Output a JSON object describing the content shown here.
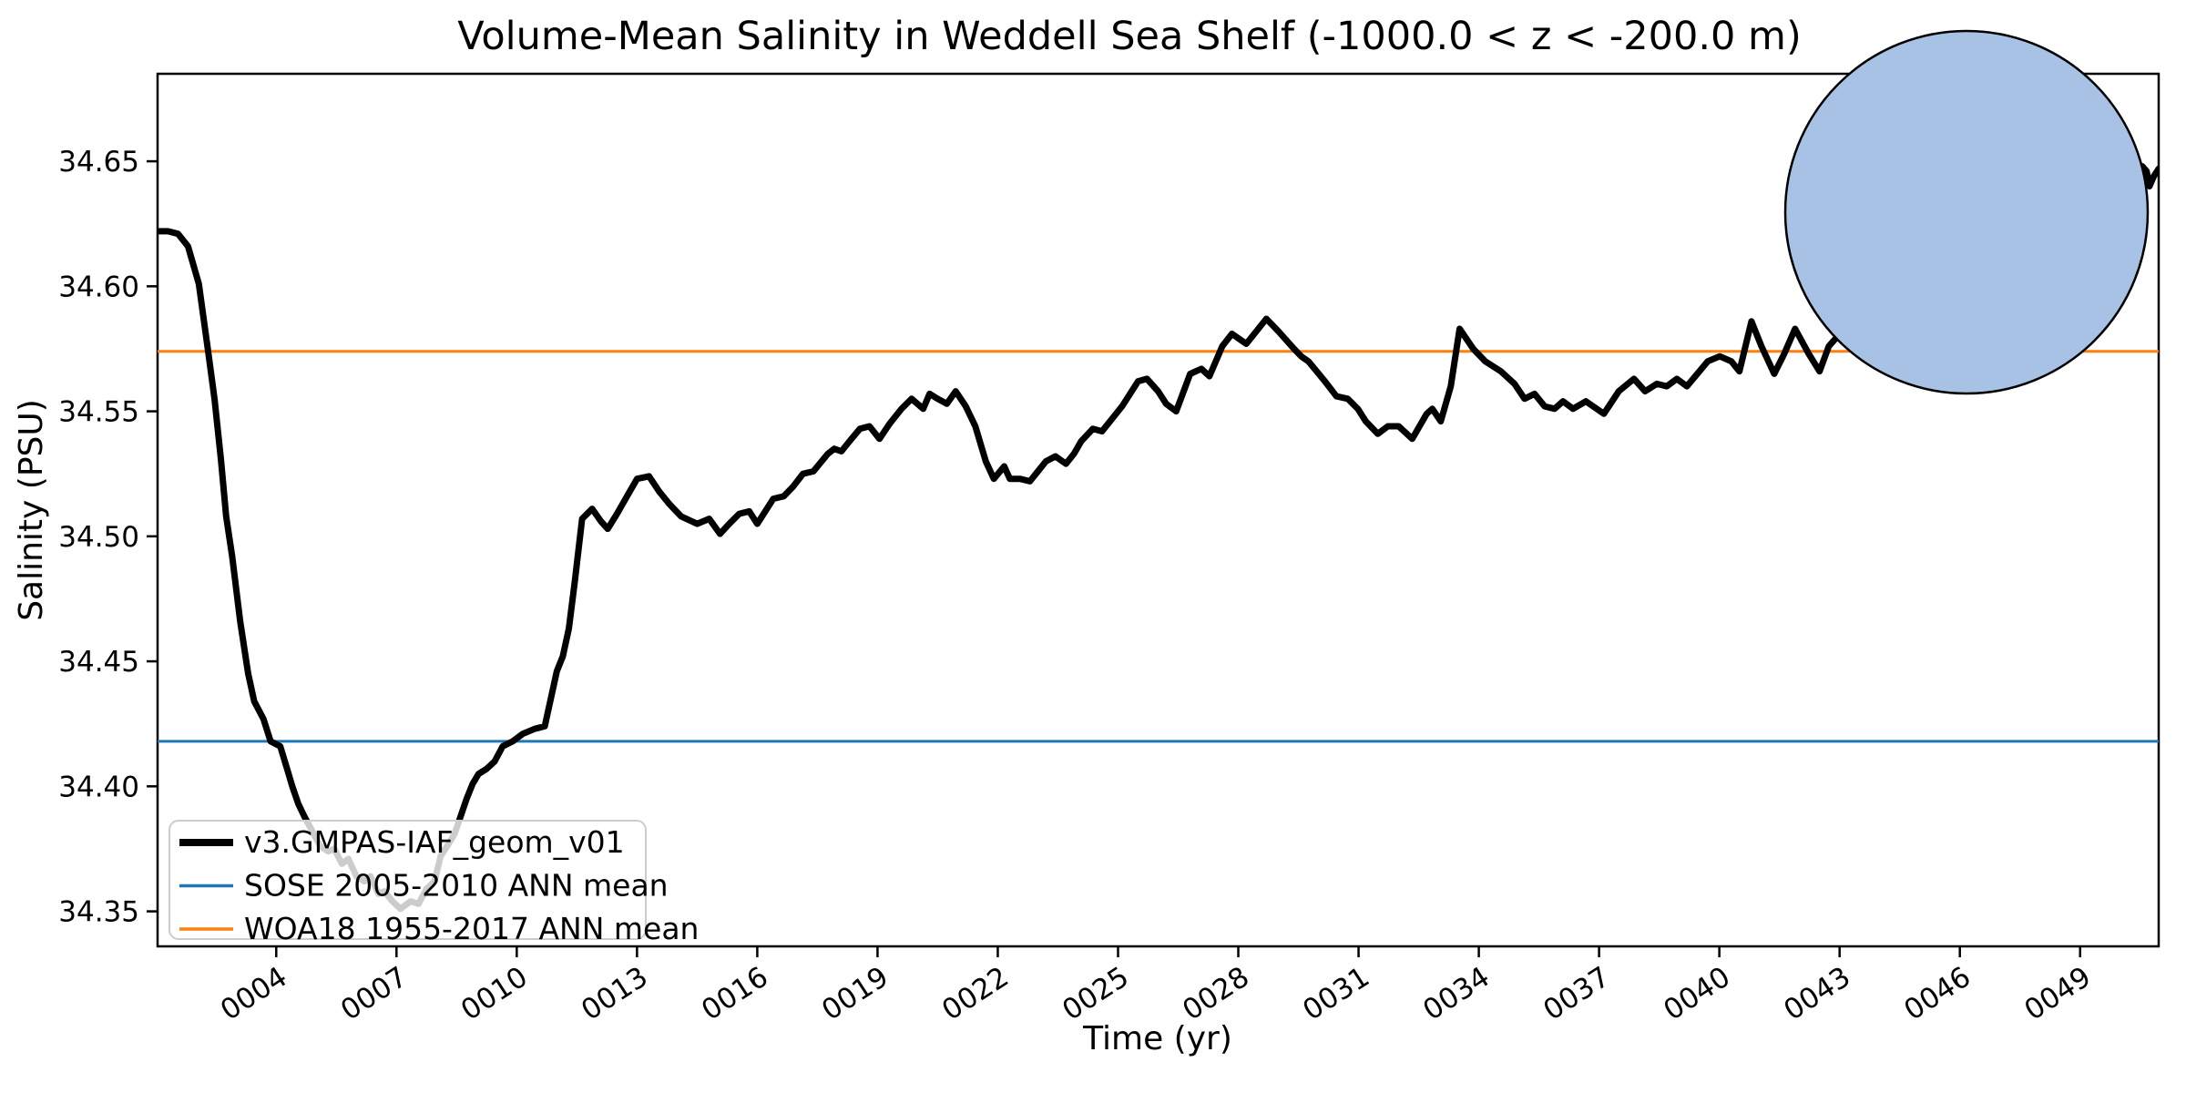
{
  "title": "Volume-Mean Salinity in Weddell Sea Shelf (-1000.0 < z < -200.0 m)",
  "axes": {
    "xlabel": "Time (yr)",
    "ylabel": "Salinity (PSU)",
    "x_tick_labels": [
      "0004",
      "0007",
      "0010",
      "0013",
      "0016",
      "0019",
      "0022",
      "0025",
      "0028",
      "0031",
      "0034",
      "0037",
      "0040",
      "0043",
      "0046",
      "0049"
    ],
    "x_tick_years": [
      4,
      7,
      10,
      13,
      16,
      19,
      22,
      25,
      28,
      31,
      34,
      37,
      40,
      43,
      46,
      49
    ],
    "y_tick_labels": [
      "34.35",
      "34.40",
      "34.45",
      "34.50",
      "34.55",
      "34.60",
      "34.65"
    ],
    "y_tick_values": [
      34.35,
      34.4,
      34.45,
      34.5,
      34.55,
      34.6,
      34.65
    ]
  },
  "legend": {
    "items": [
      {
        "label": "v3.GMPAS-IAF_geom_v01",
        "color": "#000000",
        "thickness": 8
      },
      {
        "label": "SOSE 2005-2010 ANN mean",
        "color": "#1f77b4",
        "thickness": 3.5
      },
      {
        "label": "WOA18 1955-2017 ANN mean",
        "color": "#ff7f0e",
        "thickness": 3.5
      }
    ]
  },
  "chart_data": {
    "type": "line",
    "title": "Volume-Mean Salinity in Weddell Sea Shelf (-1000.0 < z < -200.0 m)",
    "xlabel": "Time (yr)",
    "ylabel": "Salinity (PSU)",
    "xlim": [
      1.04,
      50.96
    ],
    "ylim": [
      34.336,
      34.685
    ],
    "grid": false,
    "legend_position": "lower left",
    "reference_lines": [
      {
        "name": "SOSE 2005-2010 ANN mean",
        "value": 34.418,
        "color": "#1f77b4"
      },
      {
        "name": "WOA18 1955-2017 ANN mean",
        "value": 34.574,
        "color": "#ff7f0e"
      }
    ],
    "series": [
      {
        "name": "v3.GMPAS-IAF_geom_v01",
        "color": "#000000",
        "x": [
          1.04,
          1.3,
          1.55,
          1.8,
          2.07,
          2.3,
          2.46,
          2.62,
          2.75,
          2.9,
          3.1,
          3.3,
          3.45,
          3.68,
          3.86,
          4.1,
          4.27,
          4.4,
          4.55,
          4.7,
          4.9,
          5.1,
          5.3,
          5.45,
          5.64,
          5.8,
          6.0,
          6.2,
          6.35,
          6.55,
          6.7,
          6.9,
          7.1,
          7.35,
          7.55,
          7.75,
          7.95,
          8.1,
          8.3,
          8.45,
          8.6,
          8.75,
          8.9,
          9.05,
          9.25,
          9.45,
          9.65,
          9.9,
          10.15,
          10.45,
          10.7,
          11.0,
          11.15,
          11.3,
          11.45,
          11.63,
          11.88,
          12.1,
          12.27,
          12.5,
          12.75,
          13.0,
          13.3,
          13.55,
          13.8,
          14.1,
          14.5,
          14.8,
          15.07,
          15.3,
          15.55,
          15.8,
          16.0,
          16.2,
          16.4,
          16.66,
          16.9,
          17.14,
          17.4,
          17.76,
          17.92,
          18.1,
          18.3,
          18.56,
          18.8,
          19.05,
          19.3,
          19.6,
          19.85,
          20.14,
          20.3,
          20.5,
          20.73,
          20.95,
          21.2,
          21.44,
          21.7,
          21.9,
          22.16,
          22.3,
          22.55,
          22.8,
          23.0,
          23.2,
          23.44,
          23.7,
          23.9,
          24.08,
          24.37,
          24.6,
          24.85,
          25.1,
          25.5,
          25.72,
          26.0,
          26.2,
          26.45,
          26.8,
          27.08,
          27.28,
          27.6,
          27.84,
          28.2,
          28.5,
          28.7,
          29.0,
          29.39,
          29.57,
          29.75,
          30.16,
          30.45,
          30.73,
          30.98,
          31.18,
          31.48,
          31.73,
          32.0,
          32.34,
          32.7,
          32.84,
          33.05,
          33.3,
          33.52,
          33.86,
          34.16,
          34.55,
          34.89,
          35.14,
          35.39,
          35.64,
          35.89,
          36.1,
          36.35,
          36.67,
          37.12,
          37.49,
          37.87,
          38.15,
          38.44,
          38.69,
          38.94,
          39.19,
          39.71,
          40.01,
          40.3,
          40.5,
          40.8,
          41.05,
          41.37,
          41.62,
          41.89,
          42.23,
          42.5,
          42.73,
          42.95,
          43.5,
          44.5,
          45.5,
          46.5,
          47.5,
          48.5,
          49.5,
          50.1,
          50.55,
          50.66,
          50.73,
          50.84,
          50.96
        ],
        "y": [
          34.622,
          34.622,
          34.621,
          34.616,
          34.601,
          34.574,
          34.555,
          34.531,
          34.508,
          34.492,
          34.466,
          34.445,
          34.434,
          34.427,
          34.418,
          34.416,
          34.407,
          34.4,
          34.393,
          34.388,
          34.382,
          34.376,
          34.374,
          34.375,
          34.369,
          34.371,
          34.364,
          34.362,
          34.364,
          34.357,
          34.358,
          34.354,
          34.351,
          34.354,
          34.353,
          34.359,
          34.362,
          34.372,
          34.377,
          34.381,
          34.388,
          34.395,
          34.401,
          34.405,
          34.407,
          34.41,
          34.416,
          34.418,
          34.421,
          34.423,
          34.424,
          34.446,
          34.452,
          34.463,
          34.482,
          34.507,
          34.511,
          34.506,
          34.503,
          34.509,
          34.516,
          34.523,
          34.524,
          34.518,
          34.513,
          34.508,
          34.505,
          34.507,
          34.501,
          34.505,
          34.509,
          34.51,
          34.505,
          34.51,
          34.515,
          34.516,
          34.52,
          34.525,
          34.526,
          34.533,
          34.535,
          34.534,
          34.538,
          34.543,
          34.544,
          34.539,
          34.545,
          34.551,
          34.555,
          34.551,
          34.557,
          34.555,
          34.553,
          34.558,
          34.552,
          34.544,
          34.53,
          34.523,
          34.528,
          34.523,
          34.523,
          34.522,
          34.526,
          34.53,
          34.532,
          34.529,
          34.533,
          34.538,
          34.543,
          34.542,
          34.547,
          34.552,
          34.562,
          34.563,
          34.558,
          34.553,
          34.55,
          34.565,
          34.567,
          34.564,
          34.576,
          34.581,
          34.577,
          34.583,
          34.587,
          34.582,
          34.575,
          34.572,
          34.57,
          34.562,
          34.556,
          34.555,
          34.551,
          34.546,
          34.541,
          34.544,
          34.544,
          34.539,
          34.549,
          34.551,
          34.546,
          34.56,
          34.583,
          34.575,
          34.57,
          34.566,
          34.561,
          34.555,
          34.557,
          34.552,
          34.551,
          34.554,
          34.551,
          34.554,
          34.549,
          34.558,
          34.563,
          34.558,
          34.561,
          34.56,
          34.563,
          34.56,
          34.57,
          34.572,
          34.57,
          34.566,
          34.586,
          34.576,
          34.565,
          34.573,
          34.583,
          34.573,
          34.566,
          34.576,
          34.58,
          34.588,
          34.6,
          34.61,
          34.618,
          34.626,
          34.633,
          34.639,
          34.644,
          34.648,
          34.646,
          34.64,
          34.644,
          34.647
        ]
      }
    ]
  },
  "inset_map": {
    "kind": "south-polar-stereographic-map",
    "highlighted_region": "Weddell Sea Shelf",
    "ocean_color": "#a7c2e4",
    "land_color": "#f1eedb",
    "region_fill": "rgba(110,100,220,0.45)",
    "shelf_fill": "rgba(45,45,205,0.55)",
    "region_outline": "#2a2ac0",
    "graticule_color": "#999999"
  },
  "frame": {
    "spine_color": "#000000",
    "background": "#ffffff",
    "legend_fill": "rgba(255,255,255,0.8)",
    "legend_border": "#cccccc"
  }
}
